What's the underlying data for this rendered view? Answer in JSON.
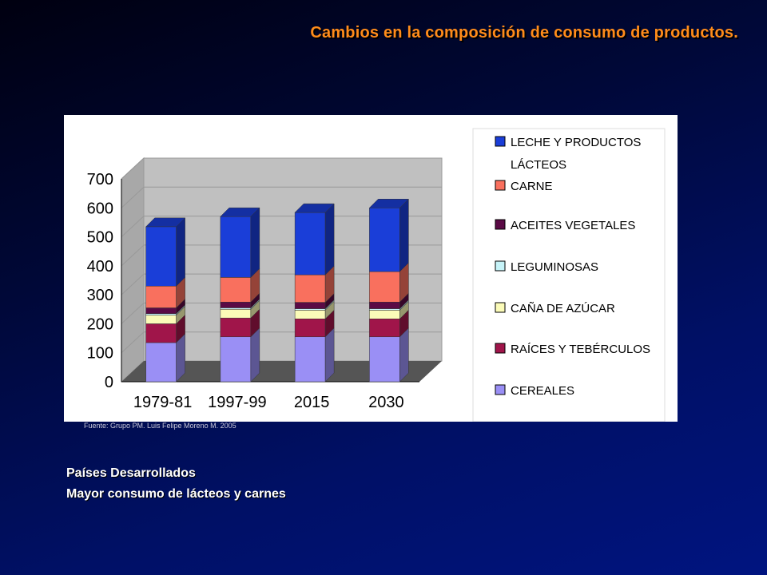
{
  "slide": {
    "title": "Cambios en la composición de consumo de productos.",
    "source": "Fuente: Grupo PM. Luis Felipe Moreno M. 2005",
    "caption_line1": "Países Desarrollados",
    "caption_line2": "Mayor consumo de lácteos y carnes"
  },
  "chart_data": {
    "type": "bar",
    "stacked": true,
    "three_d": true,
    "categories": [
      "1979-81",
      "1997-99",
      "2015",
      "2030"
    ],
    "ylim": [
      0,
      700
    ],
    "yticks": [
      "0",
      "100",
      "200",
      "300",
      "400",
      "500",
      "600",
      "700"
    ],
    "legend_position": "right",
    "series": [
      {
        "name": "CEREALES",
        "color": "#9a8ff5",
        "values": [
          135,
          155,
          155,
          155
        ]
      },
      {
        "name": "RAÍCES Y TEBÉRCULOS",
        "color": "#a0154a",
        "values": [
          65,
          65,
          62,
          62
        ]
      },
      {
        "name": "CAÑA DE AZÚCAR",
        "color": "#fbfbb8",
        "values": [
          30,
          30,
          30,
          30
        ]
      },
      {
        "name": "LEGUMINOSAS",
        "color": "#c6f3f8",
        "values": [
          5,
          5,
          5,
          5
        ]
      },
      {
        "name": "ACEITES VEGETALES",
        "color": "#5a0a45",
        "values": [
          20,
          20,
          22,
          23
        ]
      },
      {
        "name": "CARNE",
        "color": "#f9705e",
        "values": [
          75,
          85,
          95,
          105
        ]
      },
      {
        "name": "LECHE Y PRODUCTOS LÁCTEOS",
        "color": "#1a3ed8",
        "values": [
          205,
          210,
          215,
          220
        ]
      }
    ],
    "legend_order": [
      "LECHE Y PRODUCTOS LÁCTEOS",
      "CARNE",
      "ACEITES VEGETALES",
      "LEGUMINOSAS",
      "CAÑA DE AZÚCAR",
      "RAÍCES Y TEBÉRCULOS",
      "CEREALES"
    ]
  }
}
